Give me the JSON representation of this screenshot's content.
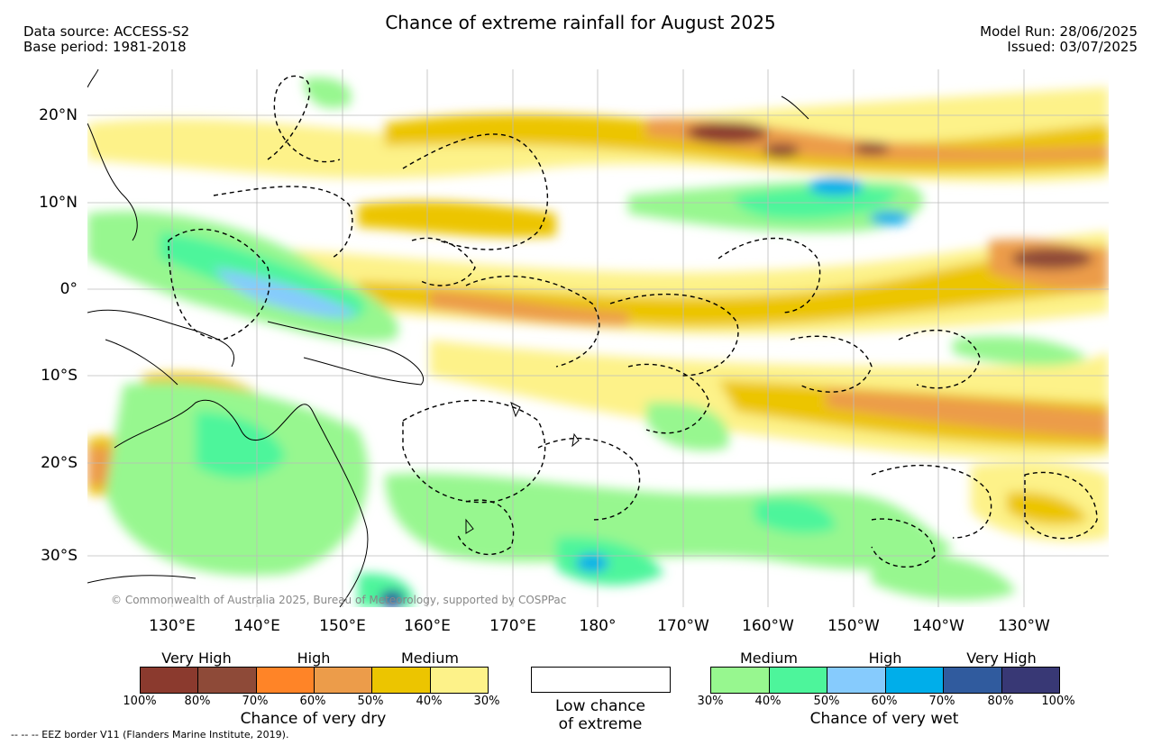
{
  "title": "Chance of extreme rainfall for August 2025",
  "data_source": "Data source: ACCESS-S2",
  "base_period": "Base period: 1981-2018",
  "model_run": "Model Run: 28/06/2025",
  "issued": "Issued: 03/07/2025",
  "copyright": "© Commonwealth of Australia 2025, Bureau of Meteorology, supported by COSPPac",
  "footnote": "-- -- -- EEZ border V11 (Flanders Marine Institute, 2019).",
  "lat_labels": [
    "20°N",
    "10°N",
    "0°",
    "10°S",
    "20°S",
    "30°S"
  ],
  "lon_labels": [
    "130°E",
    "140°E",
    "150°E",
    "160°E",
    "170°E",
    "180°",
    "170°W",
    "160°W",
    "150°W",
    "140°W",
    "130°W"
  ],
  "legend": {
    "dry": {
      "categories": [
        "Very High",
        "High",
        "Medium"
      ],
      "colors": [
        "#8b3a2e",
        "#8e4a38",
        "#ff8427",
        "#ec9c4a",
        "#ecc500",
        "#fdf289"
      ],
      "ticks": [
        "100%",
        "80%",
        "70%",
        "60%",
        "50%",
        "40%",
        "30%"
      ],
      "caption": "Chance of very dry"
    },
    "low": {
      "line1": "Low chance",
      "line2": "of extreme"
    },
    "wet": {
      "categories": [
        "Medium",
        "High",
        "Very High"
      ],
      "colors": [
        "#97f78f",
        "#4df59b",
        "#86cbfd",
        "#00aeea",
        "#305b9e",
        "#383875"
      ],
      "ticks": [
        "30%",
        "40%",
        "50%",
        "60%",
        "70%",
        "80%",
        "100%"
      ],
      "caption": "Chance of very wet"
    }
  }
}
